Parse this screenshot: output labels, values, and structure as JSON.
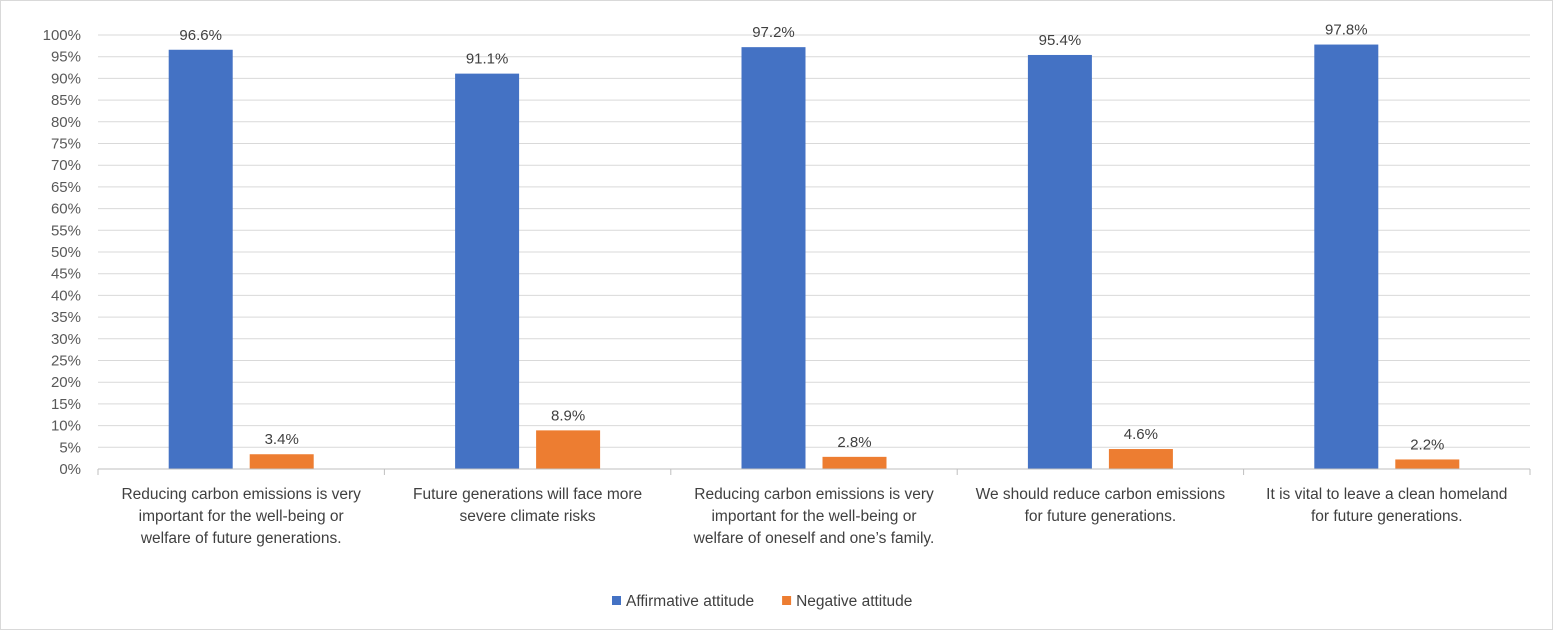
{
  "chart_data": {
    "type": "bar",
    "title": "",
    "xlabel": "",
    "ylabel": "",
    "ylim": [
      0,
      100
    ],
    "y_tick_step": 5,
    "y_tick_format": "percent",
    "grid": true,
    "legend_position": "bottom",
    "categories": [
      [
        "Reducing carbon emissions is very",
        "important for the well-being or",
        "welfare of future generations."
      ],
      [
        "Future generations will face more",
        "severe climate risks"
      ],
      [
        "Reducing carbon emissions is very",
        "important for the well-being or",
        "welfare of oneself and one’s family."
      ],
      [
        "We should reduce carbon emissions",
        "for future generations."
      ],
      [
        "It is vital to leave a clean homeland",
        "for future generations."
      ]
    ],
    "series": [
      {
        "name": "Affirmative attitude",
        "color": "#4472c4",
        "values": [
          96.6,
          91.1,
          97.2,
          95.4,
          97.8
        ]
      },
      {
        "name": "Negative attitude",
        "color": "#ed7d31",
        "values": [
          3.4,
          8.9,
          2.8,
          4.6,
          2.2
        ]
      }
    ]
  }
}
